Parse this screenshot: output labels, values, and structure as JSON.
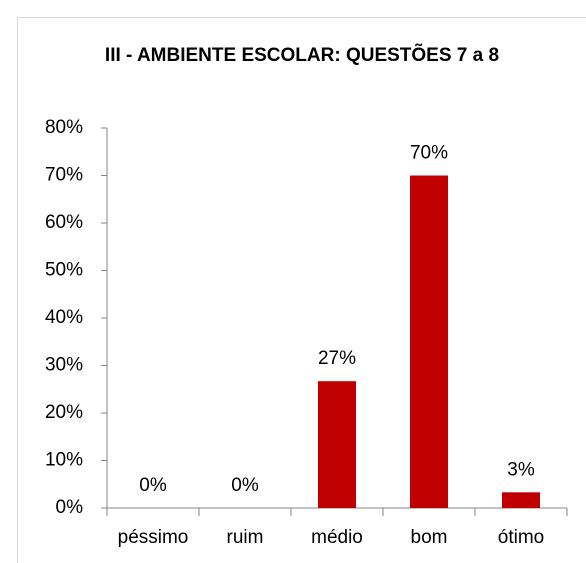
{
  "chart_data": {
    "type": "bar",
    "title": "III - AMBIENTE ESCOLAR: QUESTÕES 7 a 8",
    "categories": [
      "péssimo",
      "ruim",
      "médio",
      "bom",
      "ótimo"
    ],
    "values": [
      0,
      0,
      26.7,
      70,
      3.3
    ],
    "value_labels": [
      "0%",
      "0%",
      "27%",
      "70%",
      "3%"
    ],
    "color": "#c00000",
    "ylim": [
      0,
      80
    ],
    "yticks": [
      {
        "value": 0,
        "label": "0%"
      },
      {
        "value": 10,
        "label": "10%"
      },
      {
        "value": 20,
        "label": "20%"
      },
      {
        "value": 30,
        "label": "30%"
      },
      {
        "value": 40,
        "label": "40%"
      },
      {
        "value": 50,
        "label": "50%"
      },
      {
        "value": 60,
        "label": "60%"
      },
      {
        "value": 70,
        "label": "70%"
      },
      {
        "value": 80,
        "label": "80%"
      }
    ]
  }
}
